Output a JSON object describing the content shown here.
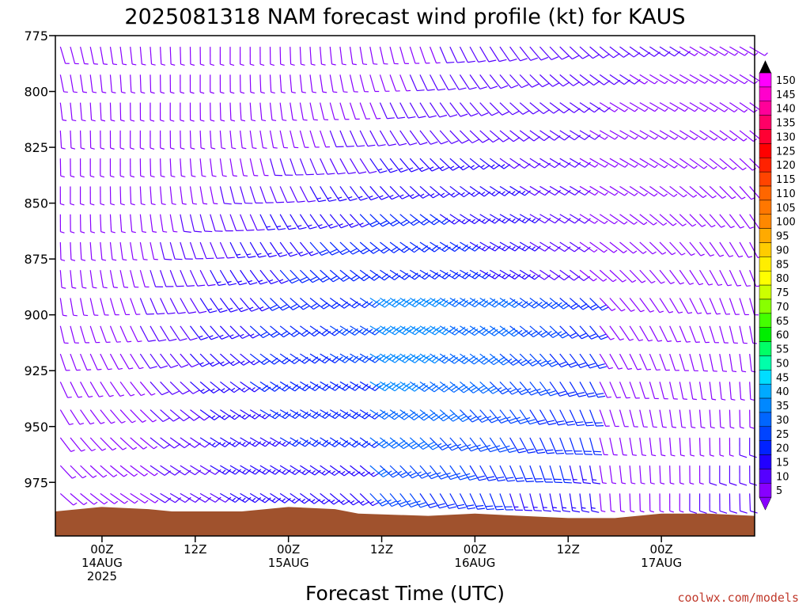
{
  "chart_data": {
    "type": "wind-barb time-height profile",
    "title": "2025081318 NAM forecast wind profile (kt) for KAUS",
    "xlabel": "Forecast Time (UTC)",
    "credit": "coolwx.com/models",
    "y_ticks": [
      775,
      800,
      825,
      850,
      875,
      900,
      925,
      950,
      975
    ],
    "ylim": [
      775,
      999
    ],
    "x_ticks": [
      {
        "time": "2025-08-14T00Z",
        "lines": [
          "00Z",
          "14AUG",
          "2025"
        ]
      },
      {
        "time": "2025-08-14T12Z",
        "lines": [
          "12Z"
        ]
      },
      {
        "time": "2025-08-15T00Z",
        "lines": [
          "00Z",
          "15AUG"
        ]
      },
      {
        "time": "2025-08-15T12Z",
        "lines": [
          "12Z"
        ]
      },
      {
        "time": "2025-08-16T00Z",
        "lines": [
          "00Z",
          "16AUG"
        ]
      },
      {
        "time": "2025-08-16T12Z",
        "lines": [
          "12Z"
        ]
      },
      {
        "time": "2025-08-17T00Z",
        "lines": [
          "00Z",
          "17AUG"
        ]
      }
    ],
    "xlim": [
      "2025-08-13T18Z",
      "2025-08-17T12Z"
    ],
    "colorbar": {
      "units": "kt",
      "labels": [
        150,
        145,
        140,
        135,
        130,
        125,
        120,
        115,
        110,
        105,
        100,
        95,
        90,
        85,
        80,
        75,
        70,
        65,
        60,
        55,
        50,
        45,
        40,
        35,
        30,
        25,
        20,
        15,
        10,
        5
      ],
      "colors": [
        "#ff00ff",
        "#ff00cc",
        "#ff0099",
        "#ff0066",
        "#ff0033",
        "#ff0000",
        "#ff2200",
        "#ff4400",
        "#ff6600",
        "#ff7700",
        "#ff8800",
        "#ffaa00",
        "#ffcc00",
        "#ffee00",
        "#ffff00",
        "#ccff00",
        "#88ff00",
        "#44ff00",
        "#00ee00",
        "#00ff66",
        "#00ffaa",
        "#00ddff",
        "#00aaff",
        "#0088ff",
        "#0066ff",
        "#0044ff",
        "#0022ff",
        "#2200ff",
        "#5500ff",
        "#8800ff"
      ]
    },
    "terrain_color": "#a0522d",
    "surface_pressure": [
      {
        "time": "2025-08-13T18Z",
        "p": 988
      },
      {
        "time": "2025-08-14T00Z",
        "p": 986
      },
      {
        "time": "2025-08-14T06Z",
        "p": 987
      },
      {
        "time": "2025-08-14T09Z",
        "p": 988
      },
      {
        "time": "2025-08-14T18Z",
        "p": 988
      },
      {
        "time": "2025-08-15T00Z",
        "p": 986
      },
      {
        "time": "2025-08-15T06Z",
        "p": 987
      },
      {
        "time": "2025-08-15T09Z",
        "p": 989
      },
      {
        "time": "2025-08-15T18Z",
        "p": 990
      },
      {
        "time": "2025-08-16T00Z",
        "p": 989
      },
      {
        "time": "2025-08-16T06Z",
        "p": 990
      },
      {
        "time": "2025-08-16T12Z",
        "p": 991
      },
      {
        "time": "2025-08-16T18Z",
        "p": 991
      },
      {
        "time": "2025-08-17T00Z",
        "p": 989
      },
      {
        "time": "2025-08-17T06Z",
        "p": 989
      },
      {
        "time": "2025-08-17T12Z",
        "p": 990
      }
    ]
  }
}
